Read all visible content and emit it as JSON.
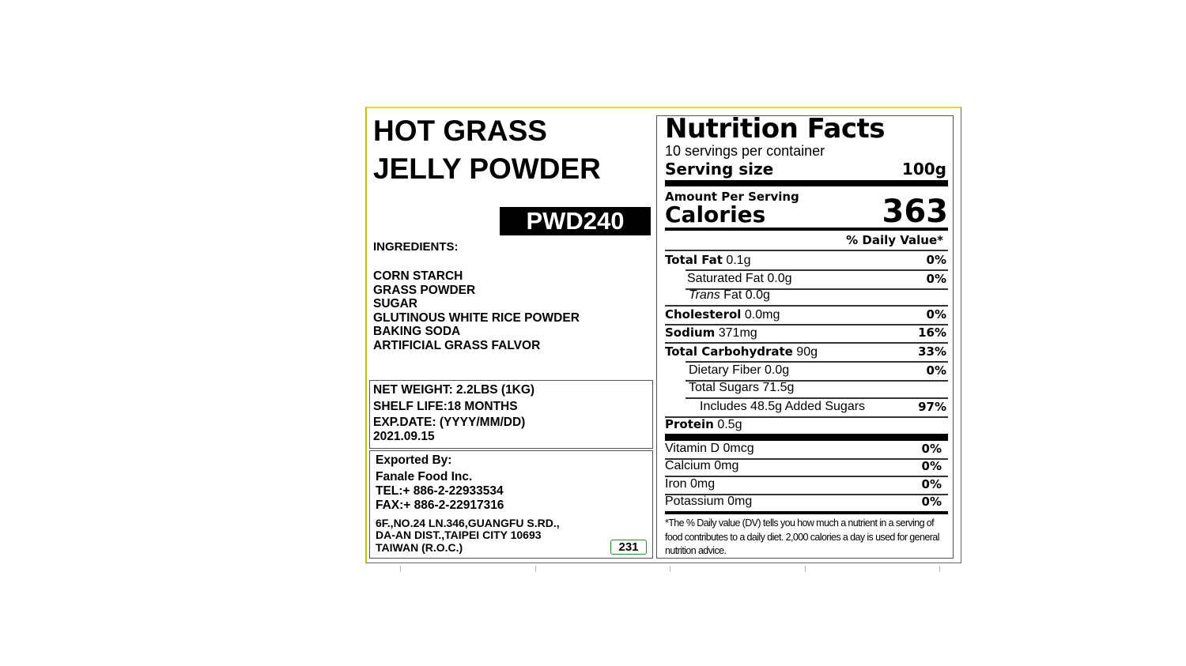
{
  "product": {
    "title": [
      "HOT GRASS",
      "JELLY POWDER"
    ],
    "code": "PWD240",
    "ingredients_label": "INGREDIENTS:",
    "ingredients": [
      "CORN STARCH",
      "GRASS POWDER",
      "SUGAR",
      "GLUTINOUS WHITE RICE POWDER",
      "BAKING SODA",
      "ARTIFICIAL GRASS FALVOR"
    ],
    "info": [
      "NET WEIGHT: 2.2LBS (1KG)",
      "SHELF LIFE:18 MONTHS",
      "EXP.DATE: (YYYY/MM/DD)",
      "2021.09.15"
    ],
    "exporter": [
      "Exported By:",
      "Fanale Food Inc.",
      "TEL:+ 886-2-22933534",
      "FAX:+ 886-2-22917316",
      "6F.,NO.24 LN.346,GUANGFU S.RD.,",
      "DA-AN DIST.,TAIPEI CITY 10693",
      "TAIWAN (R.O.C.)"
    ],
    "badge": "231"
  },
  "nutrition": {
    "title": "Nutrition Facts",
    "servings": "10 servings per container",
    "serving_size_label": "Serving size",
    "serving_size": "100g",
    "amount_per_serving": "Amount Per Serving",
    "calories_label": "Calories",
    "calories": "363",
    "daily_value_header": "% Daily Value*",
    "rows": [
      {
        "name": "Total Fat",
        "amount": "0.1g",
        "dv": "0%"
      },
      {
        "name": "Saturated Fat",
        "amount": "0.0g",
        "dv": "0%"
      },
      {
        "italic": "Trans",
        "name": "Fat",
        "amount": "0.0g"
      },
      {
        "name": "Cholesterol",
        "amount": "0.0mg",
        "dv": "0%"
      },
      {
        "name": "Sodium",
        "amount": "371mg",
        "dv": "16%"
      },
      {
        "name": "Total Carbohydrate",
        "amount": "90g",
        "dv": "33%"
      },
      {
        "name": "Dietary Fiber",
        "amount": "0.0g",
        "dv": "0%"
      },
      {
        "name": "Total Sugars",
        "amount": "71.5g"
      },
      {
        "name": "Includes 48.5g Added Sugars",
        "dv": "97%"
      },
      {
        "name": "Protein",
        "amount": "0.5g"
      }
    ],
    "vitamins": [
      {
        "name": "Vitamin D",
        "amount": "0mcg",
        "dv": "0%"
      },
      {
        "name": "Calcium",
        "amount": "0mg",
        "dv": "0%"
      },
      {
        "name": "Iron",
        "amount": "0mg",
        "dv": "0%"
      },
      {
        "name": "Potassium",
        "amount": "0mg",
        "dv": "0%"
      }
    ],
    "footnote": "*The % Daily value (DV) tells you how much a nutrient in a serving of food contributes to a daily diet. 2,000 calories a day is used for general nutrition advice."
  }
}
